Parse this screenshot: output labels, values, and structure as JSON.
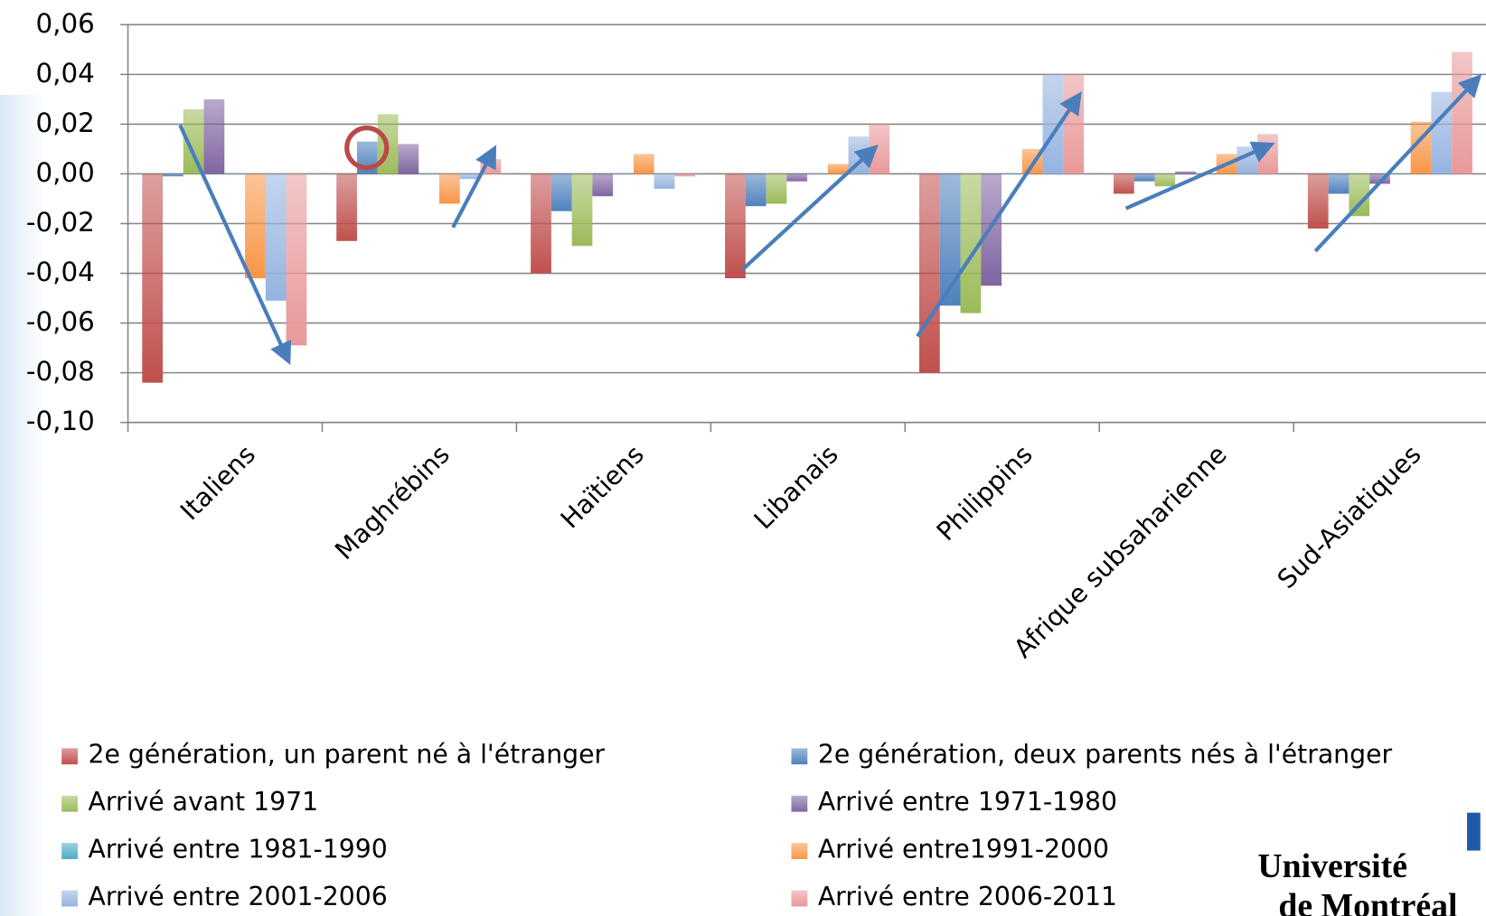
{
  "chart_data": {
    "type": "bar",
    "categories": [
      "Italiens",
      "Maghrébins",
      "Haïtiens",
      "Libanais",
      "Philippins",
      "Afrique subsaharienne",
      "Sud-Asiatiques"
    ],
    "series": [
      {
        "name": "2e génération, un parent né à l'étranger",
        "color": "#c0504d",
        "values": [
          -0.084,
          -0.027,
          -0.04,
          -0.042,
          -0.08,
          -0.008,
          -0.022
        ]
      },
      {
        "name": "2e génération, deux parents nés à l'étranger",
        "color": "#4f81bd",
        "values": [
          -0.001,
          0.013,
          -0.015,
          -0.013,
          -0.053,
          -0.003,
          -0.008
        ]
      },
      {
        "name": "Arrivé avant 1971",
        "color": "#9bbb59",
        "values": [
          0.026,
          0.024,
          -0.029,
          -0.012,
          -0.056,
          -0.005,
          -0.017
        ]
      },
      {
        "name": "Arrivé entre 1971-1980",
        "color": "#8064a2",
        "values": [
          0.03,
          0.012,
          -0.009,
          -0.003,
          -0.045,
          0.001,
          -0.004
        ]
      },
      {
        "name": "Arrivé entre 1981-1990",
        "color": "#4bacc6",
        "values": [
          0.0,
          0.0,
          0.0,
          0.0,
          0.0,
          0.0,
          0.0
        ]
      },
      {
        "name": "Arrivé entre1991-2000",
        "color": "#f79646",
        "values": [
          -0.042,
          -0.012,
          0.008,
          0.004,
          0.01,
          0.008,
          0.021
        ]
      },
      {
        "name": "Arrivé entre 2001-2006",
        "color": "#95b3e0",
        "values": [
          -0.051,
          -0.002,
          -0.006,
          0.015,
          0.04,
          0.011,
          0.033
        ]
      },
      {
        "name": "Arrivé entre 2006-2011",
        "color": "#e8989a",
        "values": [
          -0.069,
          0.006,
          -0.001,
          0.02,
          0.04,
          0.016,
          0.049
        ]
      }
    ],
    "ylim": [
      -0.1,
      0.06
    ],
    "yticks": [
      {
        "value": -0.1,
        "label": "-0,10"
      },
      {
        "value": -0.08,
        "label": "-0,08"
      },
      {
        "value": -0.06,
        "label": "-0,06"
      },
      {
        "value": -0.04,
        "label": "-0,04"
      },
      {
        "value": -0.02,
        "label": "-0,02"
      },
      {
        "value": 0.0,
        "label": "0,00"
      },
      {
        "value": 0.02,
        "label": "0,02"
      },
      {
        "value": 0.04,
        "label": "0,04"
      },
      {
        "value": 0.06,
        "label": "0,06"
      }
    ],
    "grid": true,
    "legend": "bottom"
  },
  "logo": {
    "line1": "Université",
    "line2": "de Montréal"
  }
}
